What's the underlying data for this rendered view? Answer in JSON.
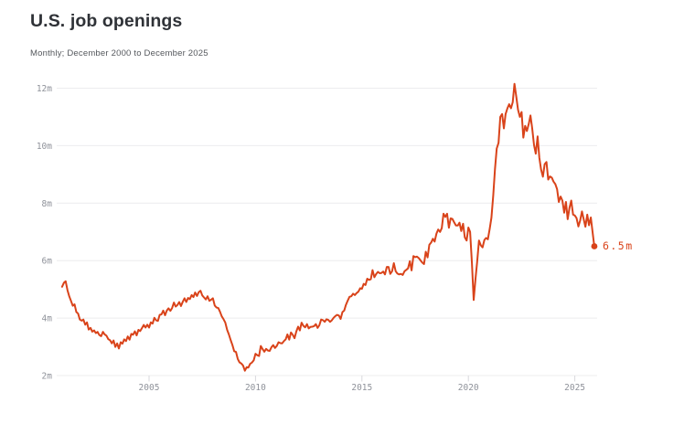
{
  "header": {
    "title": "U.S. job openings",
    "subtitle": "Monthly; December 2000 to December 2025"
  },
  "colors": {
    "line": "#d9431a",
    "grid": "#ececee",
    "tick": "#d9d9dd",
    "axis_label": "#8f929a",
    "title": "#2f3237",
    "subtitle": "#55585d",
    "background": "#ffffff"
  },
  "chart_data": {
    "type": "line",
    "title": "U.S. job openings",
    "subtitle": "Monthly; December 2000 to December 2025",
    "unit": "millions",
    "frequency": "monthly",
    "x_start": "2000-12",
    "x_end": "2025-12",
    "ylim": [
      2,
      12.4
    ],
    "grid": "horizontal",
    "legend": "none",
    "end_label": "6.5m",
    "end_value": 6.5,
    "y_ticks": [
      {
        "label": "2m",
        "value": 2
      },
      {
        "label": "4m",
        "value": 4
      },
      {
        "label": "6m",
        "value": 6
      },
      {
        "label": "8m",
        "value": 8
      },
      {
        "label": "10m",
        "value": 10
      },
      {
        "label": "12m",
        "value": 12
      }
    ],
    "x_ticks": [
      {
        "label": "2005",
        "value": 2005
      },
      {
        "label": "2010",
        "value": 2010
      },
      {
        "label": "2015",
        "value": 2015
      },
      {
        "label": "2020",
        "value": 2020
      },
      {
        "label": "2025",
        "value": 2025
      }
    ],
    "series": [
      {
        "name": "Job openings",
        "values": [
          5.09,
          5.23,
          5.28,
          4.97,
          4.76,
          4.6,
          4.43,
          4.48,
          4.21,
          4.16,
          3.95,
          3.91,
          3.95,
          3.77,
          3.85,
          3.6,
          3.66,
          3.53,
          3.57,
          3.48,
          3.52,
          3.41,
          3.37,
          3.52,
          3.43,
          3.39,
          3.27,
          3.23,
          3.12,
          3.22,
          3.0,
          3.12,
          2.94,
          3.16,
          3.11,
          3.26,
          3.2,
          3.36,
          3.25,
          3.45,
          3.42,
          3.54,
          3.4,
          3.59,
          3.55,
          3.65,
          3.76,
          3.67,
          3.77,
          3.67,
          3.85,
          3.81,
          4.01,
          3.92,
          3.9,
          4.11,
          4.13,
          4.26,
          4.1,
          4.26,
          4.34,
          4.25,
          4.35,
          4.54,
          4.4,
          4.45,
          4.56,
          4.42,
          4.57,
          4.69,
          4.56,
          4.7,
          4.66,
          4.8,
          4.73,
          4.89,
          4.77,
          4.9,
          4.95,
          4.79,
          4.72,
          4.65,
          4.76,
          4.6,
          4.64,
          4.69,
          4.44,
          4.37,
          4.35,
          4.22,
          4.06,
          3.96,
          3.84,
          3.59,
          3.43,
          3.24,
          3.06,
          2.85,
          2.82,
          2.58,
          2.46,
          2.42,
          2.35,
          2.17,
          2.29,
          2.28,
          2.41,
          2.45,
          2.53,
          2.76,
          2.71,
          2.68,
          3.03,
          2.92,
          2.83,
          2.93,
          2.87,
          2.86,
          2.99,
          3.06,
          2.96,
          3.03,
          3.16,
          3.13,
          3.12,
          3.2,
          3.26,
          3.43,
          3.25,
          3.5,
          3.42,
          3.3,
          3.53,
          3.7,
          3.57,
          3.84,
          3.73,
          3.68,
          3.79,
          3.64,
          3.69,
          3.7,
          3.72,
          3.79,
          3.66,
          3.75,
          3.95,
          3.93,
          3.87,
          3.96,
          3.94,
          3.87,
          3.92,
          4.01,
          4.07,
          4.11,
          4.09,
          3.97,
          4.21,
          4.26,
          4.46,
          4.61,
          4.74,
          4.76,
          4.85,
          4.8,
          4.87,
          4.92,
          5.04,
          5.02,
          5.19,
          5.15,
          5.37,
          5.33,
          5.35,
          5.67,
          5.42,
          5.53,
          5.61,
          5.56,
          5.57,
          5.62,
          5.52,
          5.78,
          5.78,
          5.54,
          5.63,
          5.91,
          5.63,
          5.55,
          5.52,
          5.54,
          5.5,
          5.63,
          5.68,
          5.73,
          5.98,
          5.66,
          6.16,
          6.12,
          6.14,
          6.09,
          6.01,
          5.93,
          5.88,
          6.31,
          6.11,
          6.55,
          6.63,
          6.76,
          6.66,
          6.94,
          7.08,
          7.0,
          7.13,
          7.63,
          7.52,
          7.63,
          7.14,
          7.47,
          7.45,
          7.33,
          7.22,
          7.22,
          7.32,
          7.03,
          7.28,
          6.81,
          6.7,
          7.15,
          7.0,
          5.9,
          4.63,
          5.37,
          5.99,
          6.7,
          6.53,
          6.46,
          6.72,
          6.79,
          6.74,
          7.1,
          7.49,
          8.27,
          9.19,
          9.9,
          10.1,
          11.0,
          11.1,
          10.6,
          11.1,
          11.3,
          11.44,
          11.3,
          11.51,
          12.15,
          11.7,
          11.25,
          11.0,
          11.17,
          10.28,
          10.69,
          10.51,
          10.75,
          11.05,
          10.6,
          10.02,
          9.72,
          10.32,
          9.58,
          9.17,
          8.92,
          9.35,
          9.43,
          8.82,
          8.93,
          8.89,
          8.75,
          8.66,
          8.49,
          8.04,
          8.23,
          8.09,
          7.67,
          8.04,
          7.44,
          7.84,
          8.09,
          7.6,
          7.57,
          7.48,
          7.19,
          7.39,
          7.71,
          7.44,
          7.18,
          7.6,
          7.23,
          7.5,
          7.0,
          6.5
        ]
      }
    ]
  }
}
